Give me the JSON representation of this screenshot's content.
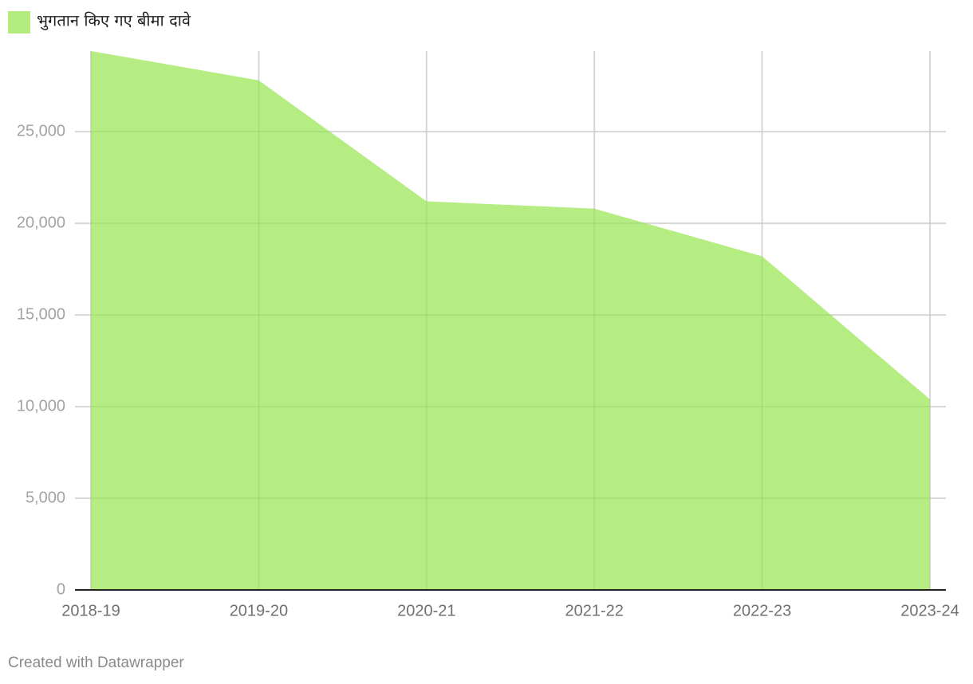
{
  "chart_data": {
    "type": "area",
    "categories": [
      "2018-19",
      "2019-20",
      "2020-21",
      "2021-22",
      "2022-23",
      "2023-24"
    ],
    "series": [
      {
        "name": "भुगतान किए गए बीमा दावे",
        "color": "#b3ec7e",
        "values": [
          29400,
          27800,
          21200,
          20800,
          18200,
          10400
        ]
      }
    ],
    "ylim": [
      0,
      29400
    ],
    "yticks": [
      0,
      {
        "value": 5000,
        "label": "5,000"
      },
      {
        "value": 10000,
        "label": "10,000"
      },
      {
        "value": 15000,
        "label": "15,000"
      },
      {
        "value": 20000,
        "label": "20,000"
      },
      {
        "value": 25000,
        "label": "25,000"
      }
    ],
    "grid": true,
    "footer": "Created with Datawrapper"
  }
}
